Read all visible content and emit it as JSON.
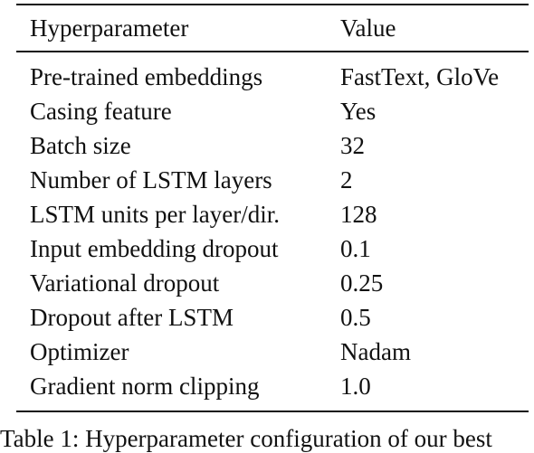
{
  "table": {
    "headers": [
      "Hyperparameter",
      "Value"
    ],
    "rows": [
      [
        "Pre-trained embeddings",
        "FastText, GloVe"
      ],
      [
        "Casing feature",
        "Yes"
      ],
      [
        "Batch size",
        "32"
      ],
      [
        "Number of LSTM layers",
        "2"
      ],
      [
        "LSTM units per layer/dir.",
        "128"
      ],
      [
        "Input embedding dropout",
        "0.1"
      ],
      [
        "Variational dropout",
        "0.25"
      ],
      [
        "Dropout after LSTM",
        "0.5"
      ],
      [
        "Optimizer",
        "Nadam"
      ],
      [
        "Gradient norm clipping",
        "1.0"
      ]
    ]
  },
  "caption": "Table 1: Hyperparameter configuration of our best"
}
